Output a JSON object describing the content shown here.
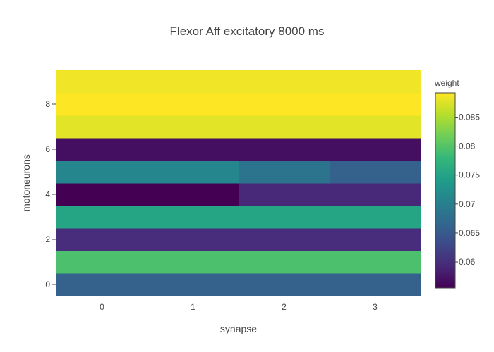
{
  "chart_data": {
    "type": "heatmap",
    "title": "Flexor Aff excitatory 8000 ms",
    "xlabel": "synapse",
    "ylabel": "motoneurons",
    "x": [
      0,
      1,
      2,
      3
    ],
    "y": [
      0,
      1,
      2,
      3,
      4,
      5,
      6,
      7,
      8,
      9
    ],
    "x_ticks": [
      0,
      1,
      2,
      3
    ],
    "y_ticks": [
      0,
      2,
      4,
      6,
      8
    ],
    "colorscale": "Viridis",
    "colorbar": {
      "title": "weight",
      "min": 0.0555,
      "max": 0.0892,
      "ticks": [
        0.06,
        0.065,
        0.07,
        0.075,
        0.08,
        0.085
      ],
      "tick_labels": [
        "0.06",
        "0.065",
        "0.07",
        "0.075",
        "0.08",
        "0.085"
      ]
    },
    "z": [
      [
        0.066,
        0.066,
        0.066,
        0.066
      ],
      [
        0.0795,
        0.0795,
        0.0795,
        0.0795
      ],
      [
        0.0598,
        0.0598,
        0.0598,
        0.0598
      ],
      [
        0.0753,
        0.0753,
        0.0753,
        0.0753
      ],
      [
        0.0555,
        0.0555,
        0.0592,
        0.0592
      ],
      [
        0.0712,
        0.0712,
        0.0685,
        0.066
      ],
      [
        0.0568,
        0.0568,
        0.0568,
        0.0568
      ],
      [
        0.0878,
        0.0878,
        0.0878,
        0.0878
      ],
      [
        0.0892,
        0.0892,
        0.0892,
        0.0892
      ],
      [
        0.0885,
        0.0885,
        0.0885,
        0.0885
      ]
    ]
  }
}
